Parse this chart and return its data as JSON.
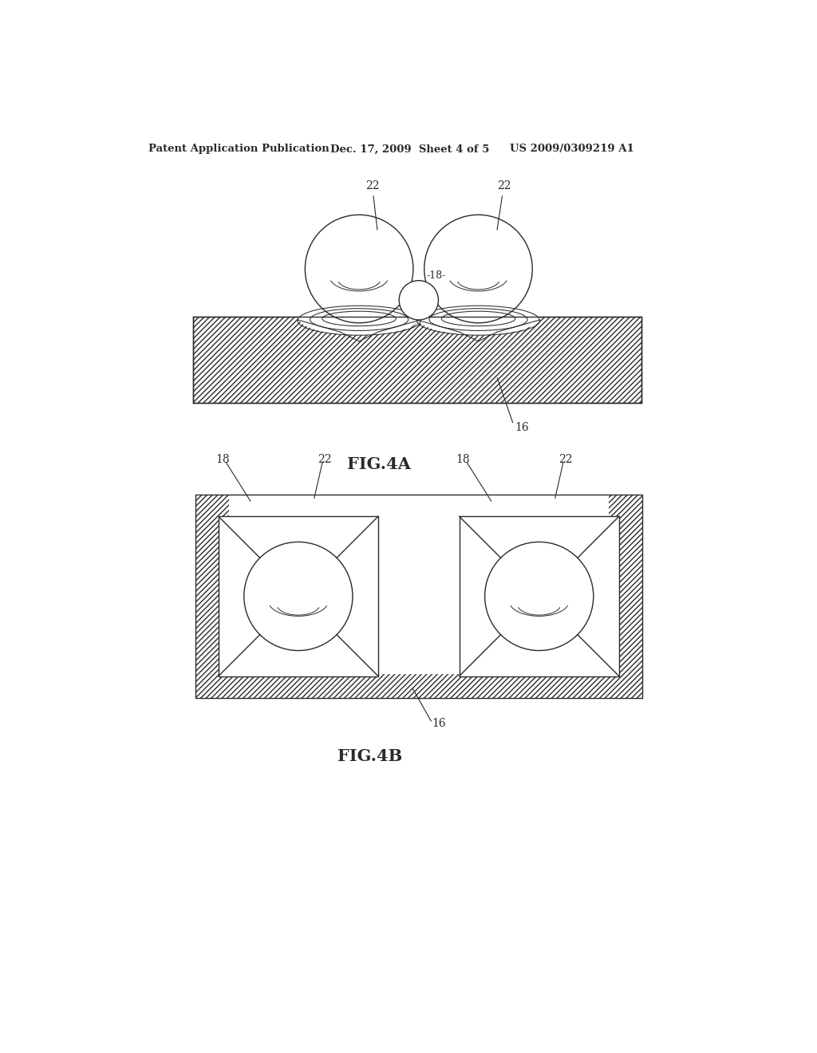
{
  "bg_color": "#ffffff",
  "header_text": "Patent Application Publication",
  "header_date": "Dec. 17, 2009  Sheet 4 of 5",
  "header_patent": "US 2009/0309219 A1",
  "fig4a_label": "FIG.4A",
  "fig4b_label": "FIG.4B",
  "line_color": "#2a2a2a",
  "lw": 1.0
}
